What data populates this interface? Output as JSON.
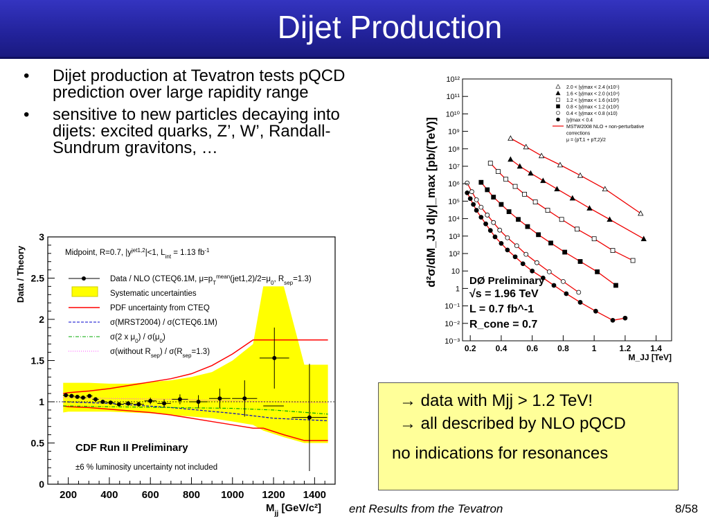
{
  "slide": {
    "title": "Dijet Production",
    "bullets": [
      "Dijet production at Tevatron  tests pQCD prediction over large rapidity range",
      "sensitive to new particles decaying into dijets: excited quarks, Z’, W’, Randall-Sundrum gravitons, …"
    ],
    "bullet_glyph": "•",
    "callout": {
      "line1": "→ data with Mjj > 1.2 TeV!",
      "line2": "→ all described by NLO pQCD",
      "line3": "no indications for resonances"
    },
    "footer_talk": "ent Results from the Tevatron",
    "footer_page": "8/58",
    "colors": {
      "title_bar": "#2626a8",
      "callout_bg": "#ffff99",
      "band": "#ffff00",
      "pdf_line": "#ff0000"
    }
  },
  "chart_data": [
    {
      "type": "scatter",
      "experiment": "CDF Run II Preliminary",
      "note": "±6 % luminosity uncertainty not included",
      "ylabel": "Data / Theory",
      "xlabel_main": "M",
      "xlabel_sub": "jj",
      "xlabel_unit": "[GeV/c²]",
      "xlim": [
        100,
        1500
      ],
      "ylim": [
        0,
        3
      ],
      "xticks": [
        200,
        400,
        600,
        800,
        1000,
        1200,
        1400
      ],
      "yticks": [
        0,
        0.5,
        1,
        1.5,
        2,
        2.5,
        3
      ],
      "ytick_labels": [
        "0",
        "0.5",
        "1",
        "1.5",
        "2",
        "2.5",
        "3"
      ],
      "info_line": "Midpoint, R=0.7, |y^jet1,2|<1, L_int = 1.13 fb^-1",
      "legend": [
        "Data / NLO (CTEQ6.1M, μ=p_T^mean(jet1,2)/2=μ0, R_sep=1.3)",
        "Systematic uncertainties",
        "PDF uncertainty from CTEQ",
        "σ(MRST2004) / σ(CTEQ6.1M)",
        "σ(2 x μ0) / σ(μ0)",
        "σ(without R_sep) / σ(R_sep=1.3)"
      ],
      "points": {
        "x": [
          188,
          216,
          244,
          272,
          303,
          333,
          368,
          406,
          447,
          492,
          543,
          600,
          667,
          744,
          834,
          938,
          1059,
          1204,
          1375
        ],
        "y": [
          1.08,
          1.07,
          1.06,
          1.05,
          1.07,
          1.03,
          1.0,
          0.99,
          0.97,
          0.98,
          0.97,
          1.01,
          0.98,
          1.03,
          1.0,
          1.04,
          1.04,
          1.53,
          0.81
        ],
        "xerr": [
          14,
          14,
          14,
          15,
          15,
          16,
          18,
          19,
          21,
          23,
          26,
          29,
          33,
          39,
          45,
          52,
          61,
          72,
          86
        ],
        "yerr": [
          0.02,
          0.02,
          0.02,
          0.02,
          0.02,
          0.02,
          0.02,
          0.02,
          0.02,
          0.03,
          0.03,
          0.04,
          0.05,
          0.06,
          0.08,
          0.12,
          0.22,
          0.37,
          0.65
        ]
      },
      "systematic_band": {
        "x": [
          175,
          200,
          300,
          400,
          500,
          600,
          700,
          800,
          900,
          1000,
          1100,
          1150,
          1250,
          1350,
          1465
        ],
        "low": [
          0.87,
          0.88,
          0.88,
          0.88,
          0.87,
          0.86,
          0.84,
          0.82,
          0.8,
          0.76,
          0.72,
          0.65,
          0.57,
          0.5,
          0.5
        ],
        "high": [
          1.23,
          1.23,
          1.23,
          1.22,
          1.22,
          1.24,
          1.26,
          1.3,
          1.36,
          1.5,
          1.7,
          2.4,
          2.4,
          1.45,
          1.45
        ]
      },
      "pdf_band": {
        "x": [
          175,
          200,
          300,
          400,
          500,
          600,
          700,
          800,
          900,
          1000,
          1100,
          1150,
          1250,
          1350,
          1465
        ],
        "low": [
          0.95,
          0.94,
          0.93,
          0.91,
          0.89,
          0.87,
          0.84,
          0.8,
          0.76,
          0.72,
          0.68,
          0.68,
          0.6,
          0.53,
          0.53
        ],
        "high": [
          1.1,
          1.11,
          1.13,
          1.16,
          1.2,
          1.24,
          1.28,
          1.34,
          1.44,
          1.58,
          1.75,
          1.75,
          1.75,
          1.75,
          1.75
        ]
      },
      "mrst_ratio": {
        "x": [
          175,
          400,
          700,
          1000,
          1200,
          1465
        ],
        "y": [
          1.0,
          0.98,
          0.93,
          0.86,
          0.8,
          0.77
        ]
      },
      "scale_ratio": {
        "x": [
          175,
          400,
          700,
          1000,
          1200,
          1465
        ],
        "y": [
          0.95,
          0.94,
          0.93,
          0.92,
          0.9,
          0.85
        ]
      },
      "rsep_ratio": {
        "x": [
          175,
          400,
          700,
          1000,
          1200,
          1465
        ],
        "y": [
          1.05,
          1.04,
          1.03,
          1.01,
          1.0,
          0.99
        ]
      }
    },
    {
      "type": "scatter",
      "log_y": true,
      "experiment": "DØ Preliminary",
      "conditions": [
        "√s = 1.96 TeV",
        "L = 0.7 fb^-1",
        "R_cone = 0.7"
      ],
      "ylabel": "d²σ/dM_JJ d|y|_max  [pb/(TeV)]",
      "xlabel": "M_JJ  [TeV]",
      "xlim": [
        0.15,
        1.5
      ],
      "ylim_log10": [
        -3,
        12
      ],
      "xticks": [
        0.2,
        0.4,
        0.6,
        0.8,
        1.0,
        1.2,
        1.4
      ],
      "xtick_labels": [
        "0.2",
        "0.4",
        "0.6",
        "0.8",
        "1",
        "1.2",
        "1.4"
      ],
      "ytick_exponents": [
        -3,
        -2,
        -1,
        0,
        1,
        2,
        3,
        4,
        5,
        6,
        7,
        8,
        9,
        10,
        11,
        12
      ],
      "ytick_labels": [
        "10⁻³",
        "10⁻²",
        "10⁻¹",
        "1",
        "10",
        "10²",
        "10³",
        "10⁴",
        "10⁵",
        "10⁶",
        "10⁷",
        "10⁸",
        "10⁹",
        "10¹⁰",
        "10¹¹",
        "10¹²"
      ],
      "legend": [
        "2.0 < |y|max < 2.4 (x10⁵)",
        "1.6 < |y|max < 2.0 (x10⁴)",
        "1.2 < |y|max < 1.6 (x10³)",
        "0.8 < |y|max < 1.2 (x10²)",
        "0.4 < |y|max < 0.8 (x10)",
        "|y|max < 0.4",
        "MSTW2008 NLO + non-perturbative",
        "corrections",
        "μ = (pT,1 + pT,2)/2"
      ],
      "series": [
        {
          "name": "2.0 < |y|max < 2.4 (x10⁵)",
          "marker": "triangle-open",
          "x": [
            0.46,
            0.56,
            0.66,
            0.78,
            0.91,
            1.07,
            1.3
          ],
          "y": [
            400000000,
            130000000,
            40000000,
            12000000,
            3000000,
            500000,
            20000
          ]
        },
        {
          "name": "1.6 < |y|max < 2.0 (x10⁴)",
          "marker": "triangle-filled",
          "x": [
            0.46,
            0.52,
            0.59,
            0.67,
            0.76,
            0.86,
            0.97,
            1.1,
            1.32
          ],
          "y": [
            25000000,
            10000000,
            4000000,
            1500000,
            500000,
            150000,
            40000,
            9000,
            700
          ]
        },
        {
          "name": "1.2 < |y|max < 1.6 (x10³)",
          "marker": "square-open",
          "x": [
            0.33,
            0.38,
            0.43,
            0.49,
            0.55,
            0.62,
            0.7,
            0.79,
            0.89,
            1.0,
            1.12,
            1.25
          ],
          "y": [
            15000000,
            5000000,
            1800000,
            700000,
            250000,
            90000,
            30000,
            9000,
            2500,
            700,
            150,
            40
          ]
        },
        {
          "name": "0.8 < |y|max < 1.2 (x10²)",
          "marker": "square-filled",
          "x": [
            0.27,
            0.31,
            0.35,
            0.4,
            0.45,
            0.51,
            0.57,
            0.64,
            0.72,
            0.81,
            0.91,
            1.02,
            1.14
          ],
          "y": [
            1200000,
            450000,
            170000,
            65000,
            25000,
            9000,
            3500,
            1200,
            400,
            120,
            35,
            9,
            1.5
          ]
        },
        {
          "name": "0.4 < |y|max < 0.8 (x10)",
          "marker": "circle-open",
          "x": [
            0.18,
            0.21,
            0.24,
            0.27,
            0.31,
            0.35,
            0.39,
            0.44,
            0.5,
            0.56,
            0.63,
            0.71,
            0.8,
            0.9
          ],
          "y": [
            1100000,
            350000,
            120000,
            45000,
            16000,
            6000,
            2200,
            800,
            280,
            90,
            30,
            9,
            2.5,
            0.6
          ]
        },
        {
          "name": "|y|max < 0.4",
          "marker": "circle-filled",
          "x": [
            0.18,
            0.2,
            0.22,
            0.24,
            0.27,
            0.3,
            0.33,
            0.36,
            0.4,
            0.44,
            0.49,
            0.54,
            0.6,
            0.67,
            0.74,
            0.82,
            0.91,
            1.01,
            1.12,
            1.2
          ],
          "y": [
            300000,
            140000,
            65000,
            30000,
            12000,
            5000,
            2100,
            900,
            380,
            160,
            65,
            26,
            10,
            4,
            1.5,
            0.5,
            0.16,
            0.05,
            0.015,
            0.02
          ]
        }
      ]
    }
  ]
}
